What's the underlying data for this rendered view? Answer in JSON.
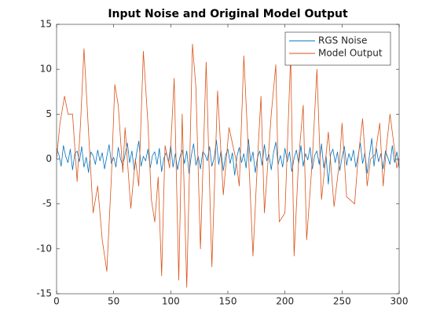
{
  "chart_data": {
    "type": "line",
    "title": "Input Noise and Original Model Output",
    "xlim": [
      0,
      300
    ],
    "xticks": [
      0,
      50,
      100,
      150,
      200,
      250,
      300
    ],
    "ylim": [
      -15,
      15
    ],
    "yticks": [
      -15,
      -10,
      -5,
      0,
      5,
      10,
      15
    ],
    "legend": "northeast",
    "grid": false,
    "series": [
      {
        "name": "RGS Noise",
        "color": "#0072BD",
        "x": [
          0,
          2,
          4,
          6,
          8,
          10,
          12,
          14,
          16,
          18,
          20,
          22,
          24,
          26,
          28,
          30,
          32,
          34,
          36,
          38,
          40,
          42,
          44,
          46,
          48,
          50,
          52,
          54,
          56,
          58,
          60,
          62,
          64,
          66,
          68,
          70,
          72,
          74,
          76,
          78,
          80,
          82,
          84,
          86,
          88,
          90,
          92,
          94,
          96,
          98,
          100,
          102,
          104,
          106,
          108,
          110,
          112,
          114,
          116,
          118,
          120,
          122,
          124,
          126,
          128,
          130,
          132,
          134,
          136,
          138,
          140,
          142,
          144,
          146,
          148,
          150,
          152,
          154,
          156,
          158,
          160,
          162,
          164,
          166,
          168,
          170,
          172,
          174,
          176,
          178,
          180,
          182,
          184,
          186,
          188,
          190,
          192,
          194,
          196,
          198,
          200,
          202,
          204,
          206,
          208,
          210,
          212,
          214,
          216,
          218,
          220,
          222,
          224,
          226,
          228,
          230,
          232,
          234,
          236,
          238,
          240,
          242,
          244,
          246,
          248,
          250,
          252,
          254,
          256,
          258,
          260,
          262,
          264,
          266,
          268,
          270,
          272,
          274,
          276,
          278,
          280,
          282,
          284,
          286,
          288,
          290,
          292,
          294,
          296,
          298,
          300
        ],
        "values": [
          1.2,
          0.5,
          -0.8,
          1.5,
          0.3,
          -0.4,
          1.1,
          -1.2,
          0.6,
          0.9,
          -0.3,
          1.4,
          -0.9,
          0.2,
          -1.5,
          0.8,
          0.4,
          -0.6,
          1.0,
          -0.2,
          0.7,
          -1.1,
          0.3,
          1.6,
          -0.5,
          0.2,
          -0.9,
          1.3,
          0.0,
          -0.7,
          0.5,
          1.8,
          -0.4,
          0.9,
          -1.3,
          0.6,
          2.0,
          -0.8,
          0.3,
          -0.2,
          1.1,
          -1.0,
          0.4,
          0.8,
          -0.6,
          1.2,
          -1.4,
          0.1,
          0.7,
          -0.3,
          1.5,
          -0.9,
          0.6,
          -1.2,
          0.2,
          1.0,
          -0.5,
          0.9,
          -1.6,
          0.4,
          1.7,
          -0.7,
          0.3,
          -1.1,
          0.8,
          0.5,
          -0.2,
          1.4,
          -0.8,
          0.1,
          2.1,
          -0.6,
          0.9,
          -1.3,
          0.4,
          1.1,
          -0.5,
          0.7,
          -1.8,
          0.3,
          1.3,
          -0.4,
          0.6,
          -1.0,
          2.2,
          -0.3,
          0.8,
          -1.5,
          0.2,
          0.9,
          -0.7,
          1.6,
          -0.2,
          0.5,
          -1.2,
          0.7,
          1.9,
          -0.6,
          0.4,
          -0.9,
          1.2,
          -0.3,
          0.8,
          -1.4,
          0.1,
          1.0,
          -0.5,
          1.5,
          -0.8,
          0.6,
          -0.1,
          1.3,
          -1.1,
          0.4,
          0.9,
          -0.6,
          1.7,
          -1.0,
          0.3,
          -2.8,
          0.5,
          1.1,
          -0.4,
          0.8,
          -1.3,
          0.2,
          1.4,
          -0.7,
          0.6,
          -0.2,
          1.0,
          -0.9,
          0.3,
          1.8,
          -0.5,
          0.7,
          -1.6,
          0.4,
          2.3,
          -0.8,
          1.2,
          -0.3,
          0.6,
          -1.1,
          0.9,
          0.2,
          -0.6,
          1.5,
          -0.4,
          0.8,
          -1.0
        ]
      },
      {
        "name": "Model Output",
        "color": "#D95319",
        "x": [
          0,
          3,
          7,
          10,
          14,
          18,
          21,
          24,
          28,
          32,
          36,
          40,
          44,
          48,
          51,
          54,
          58,
          60,
          65,
          69,
          72,
          76,
          80,
          83,
          86,
          89,
          92,
          95,
          99,
          103,
          107,
          110,
          114,
          119,
          122,
          126,
          131,
          136,
          141,
          146,
          151,
          157,
          160,
          164,
          169,
          172,
          176,
          179,
          182,
          188,
          192,
          195,
          200,
          205,
          208,
          212,
          216,
          219,
          224,
          228,
          232,
          238,
          243,
          248,
          250,
          254,
          261,
          264,
          268,
          272,
          275,
          279,
          283,
          286,
          289,
          292,
          295,
          298,
          300
        ],
        "values": [
          0,
          4,
          7,
          5,
          5,
          -2.5,
          4,
          12.3,
          3,
          -6,
          -3,
          -9,
          -12.5,
          -2,
          8.3,
          6,
          -1.5,
          3.5,
          -5.5,
          0,
          -3,
          12,
          4,
          -4.5,
          -7,
          -2,
          -13,
          1.5,
          -1,
          9,
          -13.5,
          5,
          -14.3,
          12.8,
          8,
          -10,
          10.8,
          -12,
          7.6,
          -4,
          3.5,
          0,
          -3,
          11.5,
          -2,
          -10.8,
          0,
          7,
          -6,
          5,
          10.5,
          -7,
          -6,
          11.5,
          -10.8,
          0,
          6,
          -9,
          0,
          10,
          -4.5,
          3,
          -5.3,
          0,
          4,
          -4.2,
          -5,
          0,
          4.5,
          -3,
          0,
          0.5,
          4,
          -3,
          1.5,
          5,
          2,
          -1,
          0
        ]
      }
    ]
  }
}
